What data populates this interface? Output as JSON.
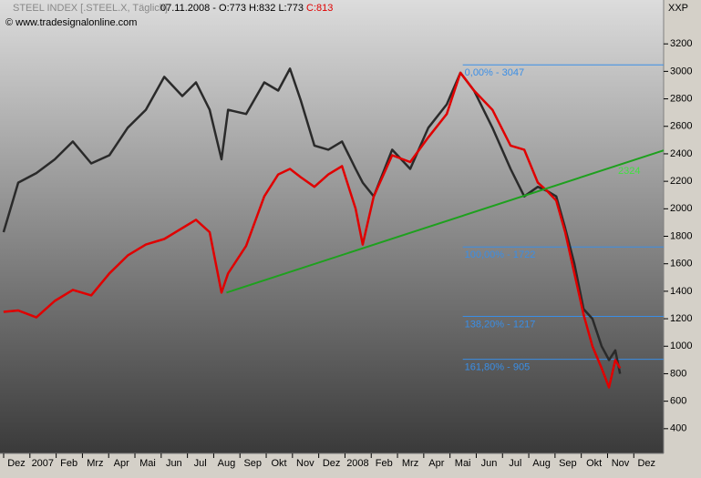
{
  "chart_data": {
    "type": "line",
    "title": "STEEL INDEX [.STEEL.X, Täglich]",
    "quote": "07.11.2008 - O:773 H:832 L:773",
    "close_quote": "C:813",
    "copyright": "© www.tradesignalonline.com",
    "axis_label": "XXP",
    "x": [
      -0.49,
      0.07,
      0.76,
      1.46,
      2.15,
      2.85,
      3.54,
      4.24,
      4.93,
      5.63,
      6.32,
      6.84,
      7.36,
      7.81,
      8.06,
      8.75,
      9.44,
      9.97,
      10.42,
      10.83,
      11.35,
      11.88,
      12.4,
      12.92,
      13.19,
      13.61,
      14.31,
      15.0,
      15.69,
      16.39,
      16.91,
      17.43,
      18.13,
      18.82,
      19.34,
      19.86,
      20.21,
      20.56,
      20.9,
      21.25,
      21.6,
      21.94,
      22.29,
      22.57,
      22.81,
      22.99
    ],
    "series": [
      {
        "name": "STEEL INDEX",
        "color": "#e00000",
        "values": [
          1250,
          1260,
          1210,
          1330,
          1410,
          1370,
          1530,
          1660,
          1740,
          1780,
          1860,
          1920,
          1830,
          1390,
          1530,
          1730,
          2090,
          2250,
          2290,
          2230,
          2160,
          2250,
          2310,
          2000,
          1740,
          2090,
          2390,
          2340,
          2520,
          2690,
          2990,
          2860,
          2720,
          2460,
          2430,
          2190,
          2130,
          2060,
          1830,
          1530,
          1230,
          1000,
          840,
          700,
          900,
          840
        ]
      },
      {
        "name": "XXP",
        "color": "#2a2a2a",
        "values": [
          1830,
          2190,
          2260,
          2360,
          2490,
          2330,
          2390,
          2590,
          2720,
          2960,
          2820,
          2920,
          2720,
          2360,
          2720,
          2690,
          2920,
          2860,
          3020,
          2790,
          2460,
          2430,
          2490,
          2290,
          2190,
          2090,
          2430,
          2290,
          2590,
          2760,
          2990,
          2860,
          2590,
          2290,
          2090,
          2160,
          2130,
          2090,
          1860,
          1600,
          1270,
          1200,
          1000,
          900,
          970,
          800
        ]
      }
    ],
    "xlim": [
      -0.625,
      24.65
    ],
    "xticks": [
      {
        "value": 0,
        "label": "Dez"
      },
      {
        "value": 1,
        "label": "2007"
      },
      {
        "value": 2,
        "label": "Feb"
      },
      {
        "value": 3,
        "label": "Mrz"
      },
      {
        "value": 4,
        "label": "Apr"
      },
      {
        "value": 5,
        "label": "Mai"
      },
      {
        "value": 6,
        "label": "Jun"
      },
      {
        "value": 7,
        "label": "Jul"
      },
      {
        "value": 8,
        "label": "Aug"
      },
      {
        "value": 9,
        "label": "Sep"
      },
      {
        "value": 10,
        "label": "Okt"
      },
      {
        "value": 11,
        "label": "Nov"
      },
      {
        "value": 12,
        "label": "Dez"
      },
      {
        "value": 13,
        "label": "2008"
      },
      {
        "value": 14,
        "label": "Feb"
      },
      {
        "value": 15,
        "label": "Mrz"
      },
      {
        "value": 16,
        "label": "Apr"
      },
      {
        "value": 17,
        "label": "Mai"
      },
      {
        "value": 18,
        "label": "Jun"
      },
      {
        "value": 19,
        "label": "Jul"
      },
      {
        "value": 20,
        "label": "Aug"
      },
      {
        "value": 21,
        "label": "Sep"
      },
      {
        "value": 22,
        "label": "Okt"
      },
      {
        "value": 23,
        "label": "Nov"
      },
      {
        "value": 24,
        "label": "Dez"
      }
    ],
    "ylim": [
      220,
      3400
    ],
    "yticks": [
      400,
      600,
      800,
      1000,
      1200,
      1400,
      1600,
      1800,
      2000,
      2200,
      2400,
      2600,
      2800,
      3000,
      3200
    ],
    "fib_color": "#3a8ee6",
    "fib_start": 17.0,
    "fib_levels": [
      {
        "value": 3047,
        "label": "0,00% - 3047"
      },
      {
        "value": 1722,
        "label": "100,00% - 1722"
      },
      {
        "value": 1217,
        "label": "138,20% - 1217"
      },
      {
        "value": 905,
        "label": "161,80% - 905"
      }
    ],
    "trendline": {
      "color": "#1ea01e",
      "x": [
        8.0,
        24.65
      ],
      "values": [
        1390,
        2425
      ],
      "label": "2324"
    }
  }
}
